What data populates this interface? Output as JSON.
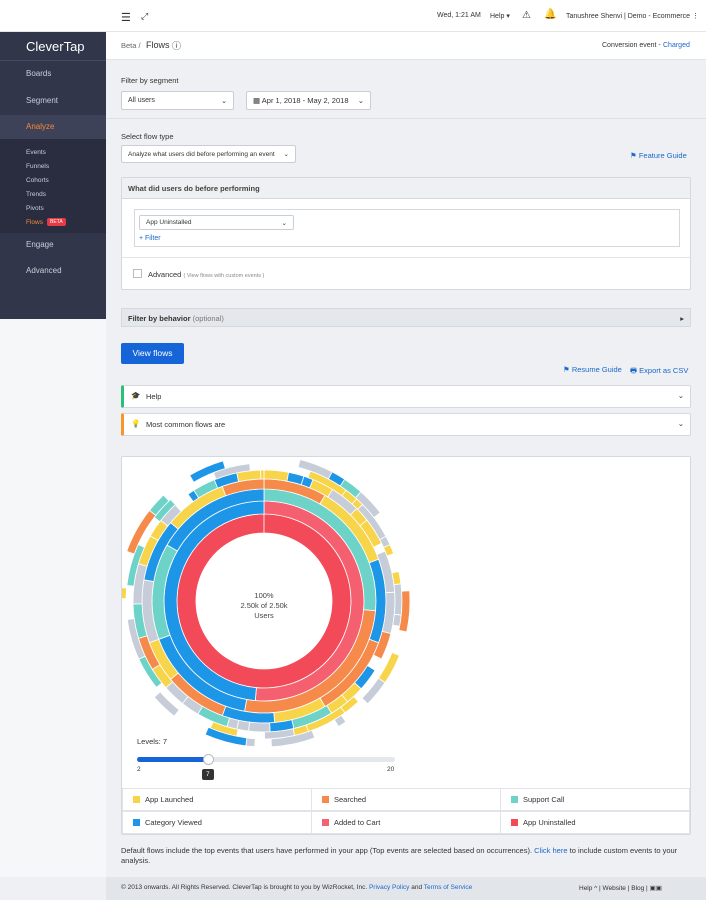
{
  "topbar": {
    "datetime": "Wed, 1:21 AM",
    "help": "Help",
    "user": "Tanushree Shenvi | Demo - Ecommerce"
  },
  "sidebar": {
    "logo": "CleverTap",
    "items": [
      "Boards",
      "Segment",
      "Analyze"
    ],
    "subitems": [
      "Events",
      "Funnels",
      "Cohorts",
      "Trends",
      "Pivots",
      "Flows"
    ],
    "badge": "BETA",
    "items2": [
      "Engage",
      "Advanced"
    ]
  },
  "breadcrumb": {
    "parent": "Beta /",
    "current": "Flows",
    "conversion_label": "Conversion event -",
    "conversion_value": "Charged"
  },
  "segment": {
    "label": "Filter by segment",
    "select": "All users",
    "date": "Apr 1, 2018 - May 2, 2018"
  },
  "flow_type": {
    "label": "Select flow type",
    "select": "Analyze what users did before performing an event",
    "guide": "Feature Guide"
  },
  "before": {
    "header": "What did users do before performing",
    "event": "App Uninstalled",
    "filter": "+ Filter",
    "advanced": "Advanced",
    "advanced_hint": "( View flows with custom events )"
  },
  "behavior": {
    "label": "Filter by behavior",
    "hint": "(optional)"
  },
  "actions": {
    "view": "View flows",
    "resume": "Resume Guide",
    "export": "Export as CSV"
  },
  "panels": [
    "Help",
    "Most common flows are"
  ],
  "sunburst": {
    "percent": "100%",
    "count": "2.50k of 2.50k",
    "unit": "Users"
  },
  "slider": {
    "label": "Levels: 7",
    "min": "2",
    "max": "20",
    "current": "7"
  },
  "legend": [
    "App Launched",
    "Searched",
    "Support Call",
    "Category Viewed",
    "Added to Cart",
    "App Uninstalled"
  ],
  "note": {
    "text": "Default flows include the top events that users have performed in your app (Top events are selected based on occurrences).",
    "link": "Click here",
    "tail": "to include custom events to your analysis."
  },
  "footer": {
    "copyright": "© 2013 onwards. All Rights Reserved. CleverTap is brought to you by WizRocket, Inc.",
    "privacy": "Privacy Policy",
    "and": "and",
    "terms": "Terms of Service",
    "links": [
      "Help ^",
      "Website",
      "Blog"
    ]
  }
}
